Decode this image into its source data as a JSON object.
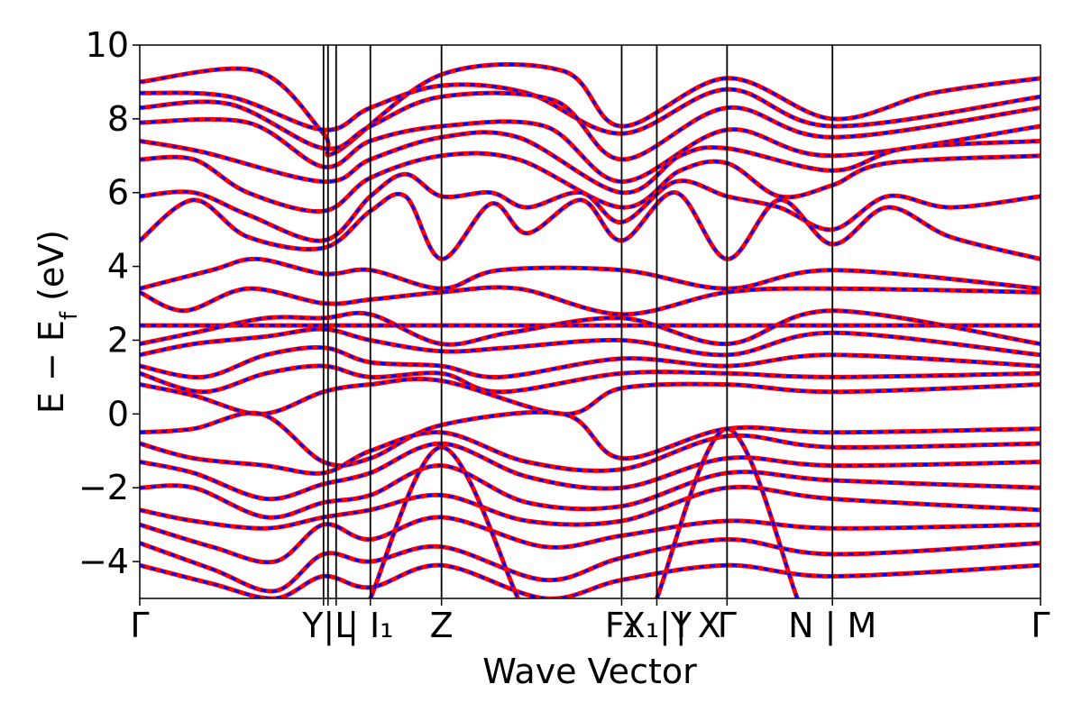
{
  "chart_data": {
    "type": "line",
    "xlabel": "Wave Vector",
    "ylabel_main": "E − E",
    "ylabel_sub": "f",
    "ylabel_unit": " (eV)",
    "ylim": [
      -5,
      10
    ],
    "yticks": [
      -4,
      -2,
      0,
      2,
      4,
      6,
      8,
      10
    ],
    "ytick_labels": [
      "−4",
      "−2",
      "0",
      "2",
      "4",
      "6",
      "8",
      "10"
    ],
    "xlim": [
      0,
      10
    ],
    "kpoint_positions": [
      0,
      2.04,
      2.09,
      2.18,
      2.56,
      3.35,
      5.35,
      5.74,
      6.52,
      7.69,
      10
    ],
    "kpoint_labels": [
      {
        "x": 0,
        "text": "Γ"
      },
      {
        "x": 2.09,
        "text": "Y|L"
      },
      {
        "x": 2.56,
        "text": "| I₁"
      },
      {
        "x": 3.35,
        "text": "Z"
      },
      {
        "x": 5.35,
        "text": "F₁"
      },
      {
        "x": 5.74,
        "text": "X₁|Y"
      },
      {
        "x": 6.2,
        "text": "| X"
      },
      {
        "x": 6.52,
        "text": "Γ"
      },
      {
        "x": 7.69,
        "text": "N | M"
      },
      {
        "x": 10,
        "text": "Γ"
      }
    ],
    "series": [
      {
        "color": "#ff0000",
        "style": "solid"
      },
      {
        "color": "#0000ff",
        "style": "dashed"
      }
    ],
    "bands": [
      {
        "x": [
          0,
          1.3,
          2.04,
          2.18,
          3.35,
          4.7,
          5.35,
          6.52,
          7.69,
          8.8,
          10
        ],
        "y": [
          9.0,
          9.3,
          7.6,
          7.1,
          9.2,
          9.3,
          7.8,
          9.1,
          8.0,
          8.7,
          9.1
        ]
      },
      {
        "x": [
          0,
          1.0,
          2.04,
          2.56,
          3.35,
          4.3,
          5.35,
          6.52,
          7.69,
          10
        ],
        "y": [
          8.7,
          8.6,
          7.7,
          8.3,
          8.9,
          8.7,
          7.6,
          8.8,
          7.8,
          8.6
        ]
      },
      {
        "x": [
          0,
          1.0,
          2.04,
          2.56,
          3.35,
          4.6,
          5.35,
          6.52,
          7.69,
          10
        ],
        "y": [
          8.3,
          8.4,
          7.2,
          7.8,
          8.6,
          8.5,
          6.9,
          8.3,
          7.5,
          8.3
        ]
      },
      {
        "x": [
          0,
          1.2,
          2.04,
          2.56,
          3.35,
          4.5,
          5.35,
          6.52,
          7.69,
          10
        ],
        "y": [
          7.9,
          7.9,
          6.7,
          7.4,
          7.8,
          7.8,
          6.3,
          7.7,
          7.0,
          7.8
        ]
      },
      {
        "x": [
          0,
          0.7,
          2.04,
          2.56,
          3.35,
          4.2,
          5.35,
          6.0,
          6.52,
          7.69,
          8.5,
          10
        ],
        "y": [
          7.4,
          7.1,
          6.3,
          6.9,
          7.5,
          7.5,
          6.0,
          7.0,
          7.2,
          6.6,
          7.2,
          7.4
        ]
      },
      {
        "x": [
          0,
          0.6,
          1.2,
          2.04,
          2.56,
          3.35,
          4.2,
          5.35,
          6.0,
          6.52,
          7.1,
          7.69,
          8.3,
          10
        ],
        "y": [
          6.9,
          6.9,
          6.0,
          5.5,
          6.4,
          7.0,
          6.9,
          5.6,
          6.6,
          6.8,
          5.9,
          6.2,
          6.8,
          7.0
        ]
      },
      {
        "x": [
          0,
          0.6,
          1.2,
          2.04,
          2.56,
          2.95,
          3.35,
          3.9,
          4.3,
          4.9,
          5.35,
          5.95,
          6.52,
          7.1,
          7.69,
          8.3,
          9.0,
          10
        ],
        "y": [
          5.9,
          6.0,
          5.4,
          4.7,
          5.9,
          6.5,
          5.9,
          6.0,
          5.6,
          6.0,
          5.2,
          6.3,
          5.9,
          5.6,
          5.0,
          5.9,
          5.6,
          5.9
        ]
      },
      {
        "x": [
          0,
          0.6,
          1.2,
          2.04,
          2.56,
          2.95,
          3.35,
          3.9,
          4.3,
          4.9,
          5.35,
          5.95,
          6.52,
          7.1,
          7.69,
          8.3,
          9.0,
          10
        ],
        "y": [
          4.7,
          5.8,
          4.8,
          4.5,
          5.5,
          5.9,
          4.2,
          5.7,
          4.9,
          5.8,
          4.7,
          6.0,
          4.2,
          5.8,
          4.6,
          5.6,
          4.8,
          4.2
        ]
      },
      {
        "x": [
          0,
          0.8,
          1.3,
          2.04,
          2.56,
          3.35,
          4.0,
          5.35,
          6.52,
          7.69,
          10
        ],
        "y": [
          3.4,
          3.9,
          4.2,
          3.8,
          3.9,
          3.4,
          3.9,
          3.9,
          3.4,
          3.9,
          3.4
        ]
      },
      {
        "x": [
          0,
          0.5,
          1.2,
          2.04,
          2.56,
          3.35,
          4.2,
          5.35,
          6.52,
          7.69,
          10
        ],
        "y": [
          3.3,
          2.8,
          3.4,
          3.0,
          3.1,
          3.3,
          3.4,
          2.7,
          3.3,
          3.4,
          3.3
        ]
      },
      {
        "x": [
          0,
          10
        ],
        "y": [
          2.4,
          2.4
        ]
      },
      {
        "x": [
          0,
          0.6,
          1.4,
          2.04,
          2.56,
          3.35,
          4.1,
          5.35,
          6.52,
          7.69,
          10
        ],
        "y": [
          1.9,
          2.2,
          2.6,
          2.6,
          2.7,
          1.9,
          2.2,
          2.6,
          1.9,
          2.8,
          1.9
        ]
      },
      {
        "x": [
          0,
          0.6,
          1.4,
          2.04,
          2.56,
          3.35,
          4.1,
          5.35,
          6.52,
          7.69,
          10
        ],
        "y": [
          1.6,
          1.9,
          2.1,
          2.3,
          2.0,
          1.7,
          1.8,
          2.0,
          1.6,
          2.2,
          1.6
        ]
      },
      {
        "x": [
          0,
          0.7,
          1.4,
          2.04,
          2.56,
          3.35,
          4.0,
          5.35,
          6.52,
          7.69,
          10
        ],
        "y": [
          1.3,
          1.0,
          1.6,
          1.8,
          1.4,
          1.3,
          1.0,
          1.5,
          1.3,
          1.6,
          1.3
        ]
      },
      {
        "x": [
          0,
          0.7,
          1.4,
          2.04,
          2.56,
          3.35,
          4.0,
          5.35,
          6.52,
          7.69,
          10
        ],
        "y": [
          1.1,
          0.6,
          1.1,
          1.3,
          1.0,
          1.1,
          0.6,
          1.1,
          1.1,
          1.0,
          1.1
        ]
      },
      {
        "x": [
          0,
          0.6,
          1.35,
          2.04,
          2.56,
          3.35,
          4.7,
          5.35,
          6.52,
          7.69,
          10
        ],
        "y": [
          0.8,
          0.5,
          0.0,
          0.6,
          0.8,
          0.9,
          0.0,
          0.7,
          0.8,
          0.6,
          0.8
        ]
      },
      {
        "x": [
          0,
          0.6,
          1.35,
          2.04,
          2.56,
          3.35,
          4.7,
          5.35,
          6.52,
          7.69,
          10
        ],
        "y": [
          -0.5,
          -0.4,
          0.0,
          -1.3,
          -1.2,
          -0.3,
          0.0,
          -1.2,
          -0.4,
          -0.5,
          -0.4
        ]
      },
      {
        "x": [
          0,
          0.6,
          1.4,
          2.04,
          2.56,
          3.35,
          4.3,
          5.35,
          6.52,
          7.69,
          10
        ],
        "y": [
          -0.8,
          -1.2,
          -1.4,
          -1.6,
          -1.0,
          -0.5,
          -1.3,
          -1.5,
          -0.6,
          -0.9,
          -0.8
        ]
      },
      {
        "x": [
          0,
          0.6,
          1.4,
          2.04,
          2.56,
          3.35,
          4.3,
          5.35,
          6.52,
          7.69,
          10
        ],
        "y": [
          -1.3,
          -1.6,
          -2.3,
          -1.9,
          -1.6,
          -0.8,
          -1.7,
          -2.0,
          -1.2,
          -1.4,
          -1.3
        ]
      },
      {
        "x": [
          0,
          0.6,
          1.4,
          2.04,
          2.56,
          3.35,
          4.3,
          5.35,
          6.52,
          7.69,
          10
        ],
        "y": [
          -2.0,
          -2.0,
          -2.8,
          -2.4,
          -2.2,
          -1.4,
          -2.4,
          -2.5,
          -1.6,
          -1.8,
          -2.0
        ]
      },
      {
        "x": [
          0,
          0.6,
          1.4,
          2.04,
          2.56,
          3.35,
          4.3,
          5.35,
          6.52,
          7.69,
          10
        ],
        "y": [
          -2.6,
          -2.9,
          -3.1,
          -2.8,
          -2.6,
          -2.2,
          -2.9,
          -2.9,
          -2.0,
          -2.3,
          -2.6
        ]
      },
      {
        "x": [
          0,
          0.8,
          1.5,
          2.04,
          2.56,
          3.35,
          4.5,
          5.35,
          6.52,
          7.69,
          10
        ],
        "y": [
          -3.0,
          -3.6,
          -4.0,
          -3.0,
          -3.4,
          -2.8,
          -3.6,
          -3.3,
          -2.9,
          -3.1,
          -3.0
        ]
      },
      {
        "x": [
          0,
          0.8,
          1.5,
          2.04,
          2.56,
          3.35,
          4.5,
          5.35,
          6.52,
          7.69,
          10
        ],
        "y": [
          -3.5,
          -4.2,
          -4.8,
          -3.8,
          -4.0,
          -3.6,
          -4.5,
          -3.9,
          -3.4,
          -3.8,
          -3.5
        ]
      },
      {
        "x": [
          0,
          0.8,
          1.5,
          2.04,
          2.56,
          3.35,
          4.5,
          5.35,
          6.52,
          7.69,
          10
        ],
        "y": [
          -4.1,
          -4.6,
          -5.0,
          -4.4,
          -4.7,
          -4.1,
          -5.0,
          -4.5,
          -4.1,
          -4.4,
          -4.1
        ]
      },
      {
        "x": [
          2.56,
          3.35,
          4.2
        ],
        "y": [
          -5.0,
          -0.9,
          -5.0
        ]
      },
      {
        "x": [
          5.74,
          6.52,
          7.3
        ],
        "y": [
          -5.0,
          -0.4,
          -5.0
        ]
      }
    ]
  }
}
